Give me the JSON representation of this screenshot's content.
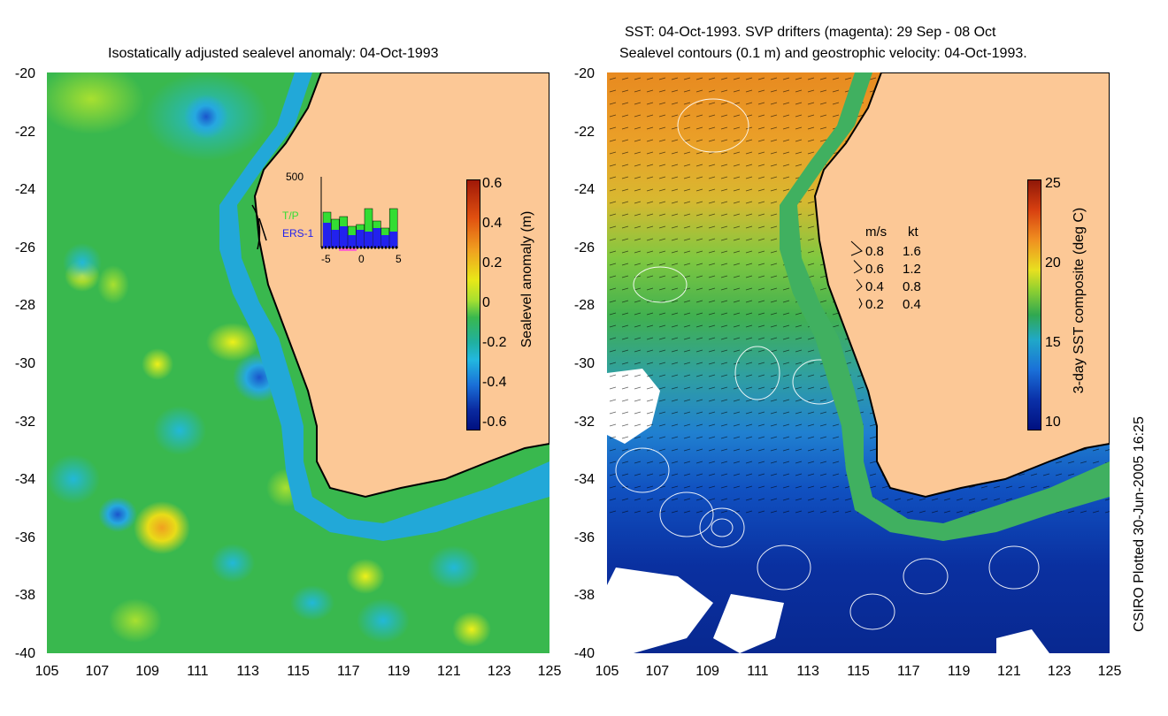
{
  "left_panel": {
    "title": "Isostatically adjusted sealevel anomaly: 04-Oct-1993",
    "lat_ticks": [
      "-20",
      "-22",
      "-24",
      "-26",
      "-28",
      "-30",
      "-32",
      "-34",
      "-36",
      "-38",
      "-40"
    ],
    "lon_ticks": [
      "105",
      "107",
      "109",
      "111",
      "113",
      "115",
      "117",
      "119",
      "121",
      "123",
      "125"
    ],
    "colorbar": {
      "label": "Sealevel anomaly (m)",
      "ticks": [
        "0.6",
        "0.4",
        "0.2",
        "0",
        "-0.2",
        "-0.4",
        "-0.6"
      ],
      "range": [
        -0.6,
        0.6
      ]
    },
    "inset": {
      "ymax_label": "500",
      "legend": [
        "T/P",
        "ERS-1"
      ],
      "x_ticks": [
        "-5",
        "0",
        "5"
      ],
      "tp_color": "#33dd33",
      "ers_color": "#2222ee"
    }
  },
  "right_panel": {
    "title_line1": "SST: 04-Oct-1993. SVP drifters (magenta): 29 Sep - 08 Oct",
    "title_line2": "Sealevel contours (0.1 m) and geostrophic velocity: 04-Oct-1993.",
    "lat_ticks": [
      "-20",
      "-22",
      "-24",
      "-26",
      "-28",
      "-30",
      "-32",
      "-34",
      "-36",
      "-38",
      "-40"
    ],
    "lon_ticks": [
      "105",
      "107",
      "109",
      "111",
      "113",
      "115",
      "117",
      "119",
      "121",
      "123",
      "125"
    ],
    "colorbar": {
      "label": "3-day SST composite (deg C)",
      "ticks": [
        "25",
        "20",
        "15",
        "10"
      ],
      "range": [
        10,
        25
      ]
    },
    "velocity_legend": {
      "header_ms": "m/s",
      "header_kt": "kt",
      "rows": [
        {
          "ms": "0.8",
          "kt": "1.6"
        },
        {
          "ms": "0.6",
          "kt": "1.2"
        },
        {
          "ms": "0.4",
          "kt": "0.8"
        },
        {
          "ms": "0.2",
          "kt": "0.4"
        }
      ]
    }
  },
  "credit": "CSIRO Plotted 30-Jun-2005 16:25",
  "colors": {
    "land": "#fcc896",
    "coast": "#000000"
  }
}
